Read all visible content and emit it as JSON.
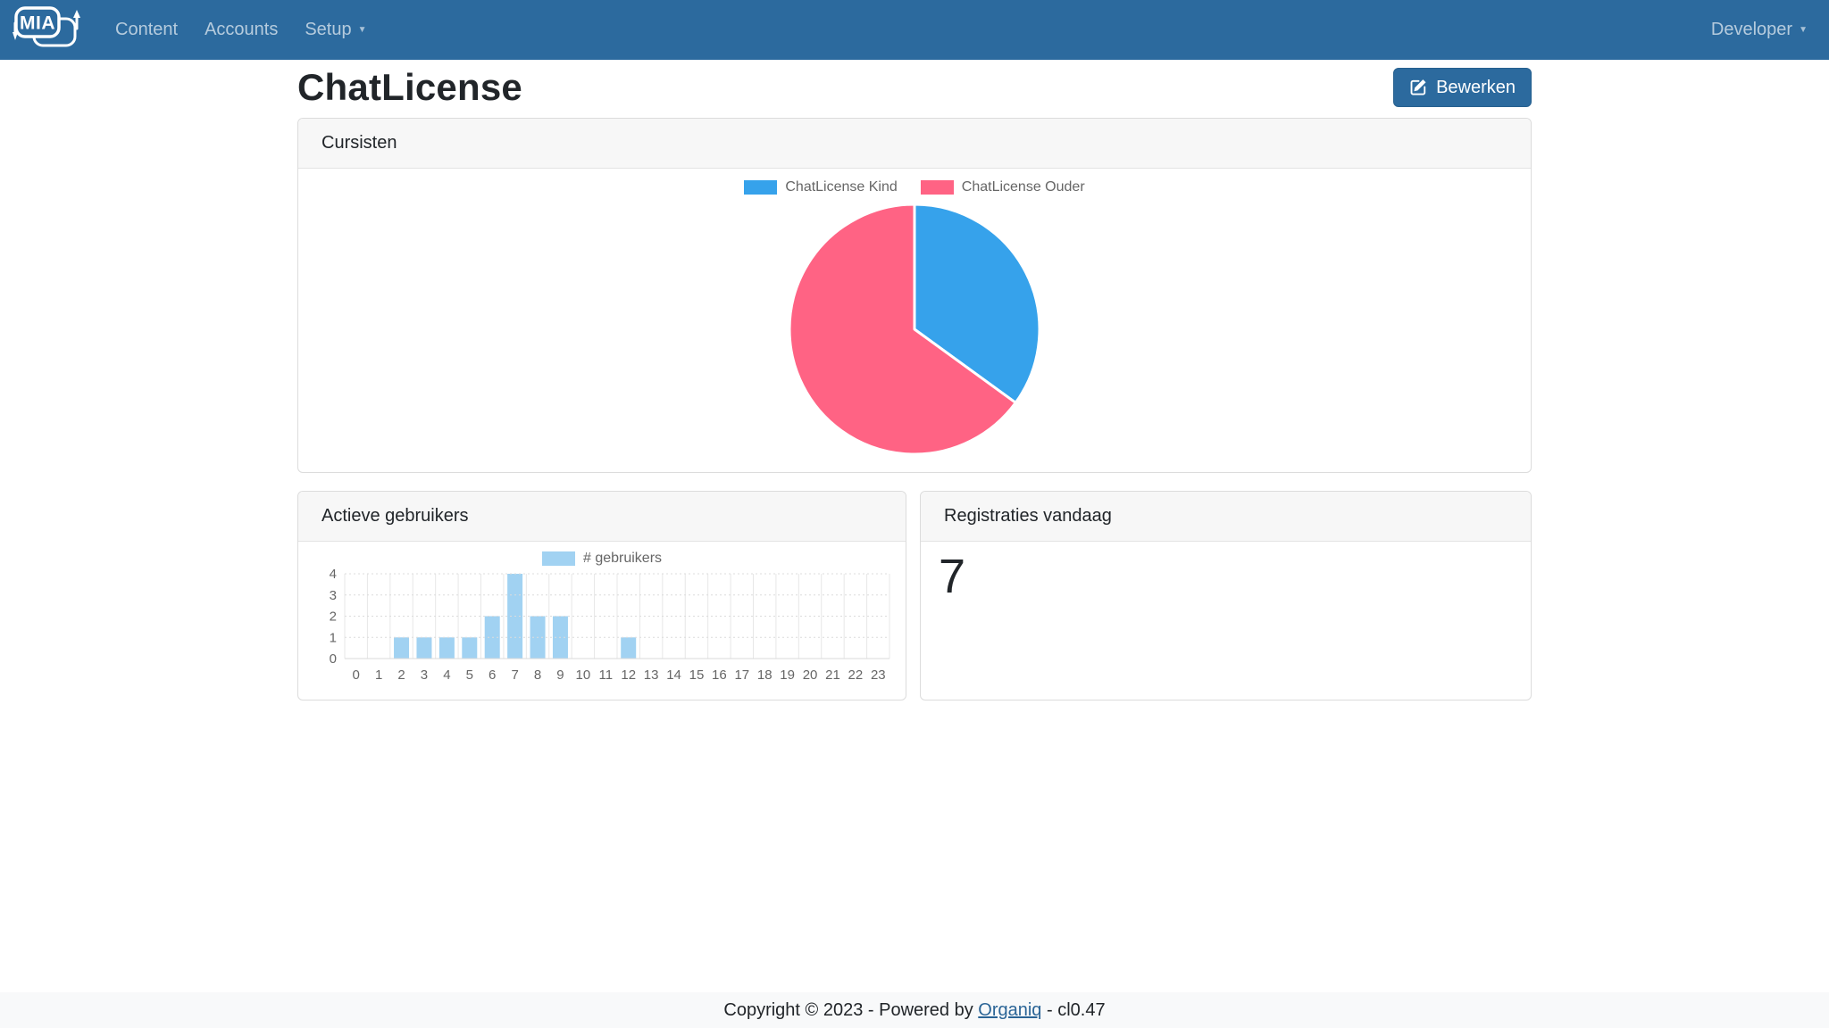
{
  "navbar": {
    "brand": "MIA",
    "items": [
      {
        "label": "Content"
      },
      {
        "label": "Accounts"
      },
      {
        "label": "Setup",
        "caret": true
      }
    ],
    "user_menu": {
      "label": "Developer"
    },
    "caret_glyph": "▼"
  },
  "page": {
    "title": "ChatLicense",
    "edit_button_label": "Bewerken"
  },
  "cards": {
    "cursisten": {
      "title": "Cursisten"
    },
    "actieve_gebruikers": {
      "title": "Actieve gebruikers"
    },
    "registraties": {
      "title": "Registraties vandaag",
      "value": "7"
    }
  },
  "footer": {
    "text_before": "Copyright © 2023 - Powered by ",
    "link_label": "Organiq",
    "text_after": " - cl0.47"
  },
  "icons": {
    "edit": "pencil-square",
    "caret": "caret-down",
    "brand": "mia-chat-bubbles-logo"
  },
  "colors": {
    "navbar_bg": "#2c6a9e",
    "button_bg": "#2c6a9e",
    "button_border": "#26608f",
    "link": "#2a6496",
    "axis_text": "#666666",
    "grid_line": "#e7e7e7",
    "bar_fill": "#A1D2F2"
  },
  "chart_data": [
    {
      "type": "pie",
      "title": "Cursisten",
      "legend_position": "top",
      "direction": "clockwise",
      "start_angle_deg": 0,
      "series": [
        {
          "name": "ChatLicense Kind",
          "value": 35,
          "color": "#36A2EB"
        },
        {
          "name": "ChatLicense Ouder",
          "value": 65,
          "color": "#FF6384"
        }
      ],
      "values_note": "percent, estimated from slice angles (blue ≈126°)"
    },
    {
      "type": "bar",
      "title": "Actieve gebruikers",
      "legend_label": "# gebruikers",
      "categories": [
        "0",
        "1",
        "2",
        "3",
        "4",
        "5",
        "6",
        "7",
        "8",
        "9",
        "10",
        "11",
        "12",
        "13",
        "14",
        "15",
        "16",
        "17",
        "18",
        "19",
        "20",
        "21",
        "22",
        "23"
      ],
      "values": [
        0,
        0,
        1,
        1,
        1,
        1,
        2,
        4,
        2,
        2,
        0,
        0,
        1,
        0,
        0,
        0,
        0,
        0,
        0,
        0,
        0,
        0,
        0,
        0
      ],
      "xlabel": "",
      "ylabel": "",
      "ylim": [
        0,
        4
      ],
      "yticks": [
        0,
        1,
        2,
        3,
        4
      ],
      "bar_color": "#A1D2F2",
      "grid": true,
      "legend_position": "top"
    }
  ]
}
